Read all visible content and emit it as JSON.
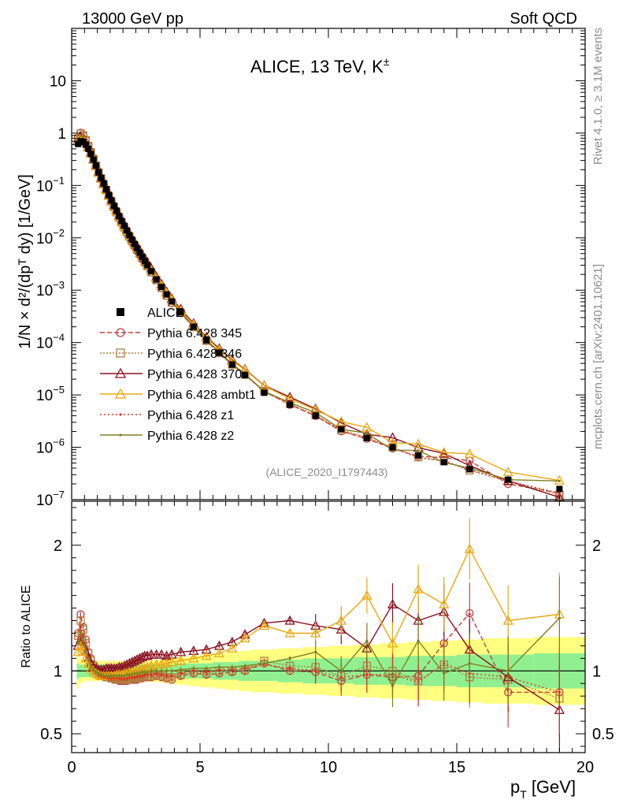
{
  "header": {
    "left": "13000 GeV pp",
    "right": "Soft QCD"
  },
  "side_text": {
    "rivet": "Rivet 4.1.0, ≥ 3.1M events",
    "site": "mcplots.cern.ch [arXiv:2401.10621]"
  },
  "chart_data": {
    "type": "line",
    "title": "ALICE, 13 TeV, K",
    "title_superscript": "±",
    "analysis_label": "(ALICE_2020_I1797443)",
    "xlabel": "p",
    "xlabel_sub": "T",
    "xlabel_unit": "[GeV]",
    "ylabel_main": "1/N × d²/(dpᵀ dy) [1/GeV]",
    "ylabel_ratio": "Ratio to ALICE",
    "xlim": [
      0,
      20
    ],
    "ylim_main": [
      1e-07,
      100
    ],
    "ylim_ratio": [
      0.35,
      2.35
    ],
    "x_ticks": [
      0,
      5,
      10,
      15,
      20
    ],
    "x_tick_labels": [
      "0",
      "5",
      "10",
      "15",
      "20"
    ],
    "y_main_ticks": [
      {
        "m": "10",
        "e": "−7",
        "v": 1e-07
      },
      {
        "m": "10",
        "e": "−6",
        "v": 1e-06
      },
      {
        "m": "10",
        "e": "−5",
        "v": 1e-05
      },
      {
        "m": "10",
        "e": "−4",
        "v": 0.0001
      },
      {
        "m": "10",
        "e": "−3",
        "v": 0.001
      },
      {
        "m": "10",
        "e": "−2",
        "v": 0.01
      },
      {
        "m": "10",
        "e": "−1",
        "v": 0.1
      },
      {
        "m": "1",
        "e": "",
        "v": 1
      },
      {
        "m": "10",
        "e": "",
        "v": 10
      }
    ],
    "y_ratio_ticks": [
      {
        "label": "0.5",
        "v": 0.5
      },
      {
        "label": "1",
        "v": 1
      },
      {
        "label": "2",
        "v": 2
      }
    ],
    "legend": [
      {
        "name": "ALICE",
        "key": "data"
      },
      {
        "name": "Pythia 6.428 345",
        "key": "p345"
      },
      {
        "name": "Pythia 6.428 346",
        "key": "p346"
      },
      {
        "name": "Pythia 6.428 370",
        "key": "p370"
      },
      {
        "name": "Pythia 6.428 ambt1",
        "key": "ambt1"
      },
      {
        "name": "Pythia 6.428 z1",
        "key": "z1"
      },
      {
        "name": "Pythia 6.428 z2",
        "key": "z2"
      }
    ],
    "x": [
      0.25,
      0.35,
      0.45,
      0.55,
      0.65,
      0.75,
      0.85,
      0.95,
      1.05,
      1.15,
      1.25,
      1.35,
      1.45,
      1.55,
      1.65,
      1.75,
      1.85,
      1.95,
      2.05,
      2.15,
      2.25,
      2.35,
      2.45,
      2.55,
      2.65,
      2.75,
      2.85,
      2.95,
      3.1,
      3.3,
      3.5,
      3.7,
      3.9,
      4.25,
      4.75,
      5.25,
      5.75,
      6.25,
      6.75,
      7.5,
      8.5,
      9.5,
      10.5,
      11.5,
      12.5,
      13.5,
      14.5,
      15.5,
      17,
      19
    ],
    "data_values": [
      0.62,
      0.7,
      0.68,
      0.6,
      0.5,
      0.4,
      0.31,
      0.24,
      0.18,
      0.14,
      0.11,
      0.085,
      0.066,
      0.052,
      0.041,
      0.033,
      0.026,
      0.021,
      0.017,
      0.0138,
      0.0112,
      0.0092,
      0.0076,
      0.0063,
      0.0052,
      0.0043,
      0.0036,
      0.003,
      0.0023,
      0.0016,
      0.00115,
      0.00083,
      0.00061,
      0.00038,
      0.0002,
      0.00011,
      6.4e-05,
      3.8e-05,
      2.4e-05,
      1.1e-05,
      6.5e-06,
      4e-06,
      2.2e-06,
      1.5e-06,
      1e-06,
      7e-07,
      5.2e-07,
      3.8e-07,
      2.4e-07,
      1.6e-07
    ],
    "data_display_values": [
      0.62,
      0.7,
      0.68,
      0.6,
      0.5,
      0.4,
      0.31,
      0.24,
      0.18,
      0.14,
      0.11,
      0.085,
      0.066,
      0.052,
      0.041,
      0.033,
      0.026,
      0.021,
      0.017,
      0.0138,
      0.0112,
      0.0092,
      0.0076,
      0.0063,
      0.0052,
      0.0043,
      0.0036,
      0.003,
      0.0023,
      0.0016,
      0.00115,
      0.00083,
      0.00061,
      0.00038,
      0.0002,
      0.00011,
      6.4e-05,
      3.8e-05,
      2.4e-05,
      1.1e-05,
      6.5e-06,
      4e-06,
      2.2e-06,
      1.5e-06,
      1e-06,
      7e-07,
      5.2e-07,
      3.8e-07,
      2.4e-07,
      1.6e-07
    ],
    "band_x_edges": [
      0.2,
      0.3,
      0.4,
      0.5,
      0.6,
      0.7,
      0.8,
      0.9,
      1.0,
      1.1,
      1.2,
      1.3,
      1.4,
      1.5,
      1.6,
      1.7,
      1.8,
      1.9,
      2.0,
      2.1,
      2.2,
      2.3,
      2.4,
      2.5,
      2.6,
      2.7,
      2.8,
      2.9,
      3.0,
      3.2,
      3.4,
      3.6,
      3.8,
      4.0,
      4.5,
      5.0,
      5.5,
      6.0,
      6.5,
      7.0,
      8.0,
      9.0,
      10.0,
      11.0,
      12.0,
      13.0,
      14.0,
      15.0,
      16.0,
      18.0,
      20.0
    ],
    "band_green": [
      0.06,
      0.05,
      0.05,
      0.05,
      0.05,
      0.05,
      0.05,
      0.05,
      0.05,
      0.05,
      0.05,
      0.05,
      0.05,
      0.05,
      0.05,
      0.05,
      0.05,
      0.05,
      0.05,
      0.05,
      0.05,
      0.05,
      0.05,
      0.05,
      0.05,
      0.05,
      0.05,
      0.05,
      0.05,
      0.05,
      0.05,
      0.05,
      0.05,
      0.06,
      0.06,
      0.06,
      0.07,
      0.07,
      0.08,
      0.08,
      0.09,
      0.1,
      0.1,
      0.11,
      0.11,
      0.12,
      0.12,
      0.13,
      0.13,
      0.14
    ],
    "band_yellow": [
      0.14,
      0.1,
      0.09,
      0.08,
      0.08,
      0.08,
      0.08,
      0.08,
      0.08,
      0.08,
      0.08,
      0.08,
      0.08,
      0.08,
      0.08,
      0.08,
      0.08,
      0.08,
      0.08,
      0.08,
      0.08,
      0.08,
      0.08,
      0.08,
      0.08,
      0.08,
      0.08,
      0.08,
      0.09,
      0.09,
      0.09,
      0.1,
      0.1,
      0.11,
      0.12,
      0.13,
      0.14,
      0.15,
      0.16,
      0.17,
      0.18,
      0.19,
      0.2,
      0.21,
      0.22,
      0.23,
      0.24,
      0.25,
      0.26,
      0.27
    ],
    "series": [
      {
        "key": "p345",
        "name": "Pythia 6.428 345",
        "color": "#c04040",
        "dash": "6,3",
        "marker": "circle",
        "ratio": [
          1.3,
          1.45,
          1.35,
          1.25,
          1.15,
          1.1,
          1.05,
          1.0,
          0.98,
          0.97,
          0.96,
          0.95,
          0.95,
          0.94,
          0.93,
          0.93,
          0.92,
          0.92,
          0.92,
          0.92,
          0.93,
          0.93,
          0.93,
          0.93,
          0.94,
          0.94,
          0.95,
          0.95,
          0.95,
          0.96,
          0.95,
          0.94,
          0.93,
          0.96,
          0.98,
          0.97,
          0.98,
          0.99,
          1.0,
          1.06,
          1.0,
          0.99,
          0.92,
          0.97,
          0.95,
          0.96,
          1.22,
          1.46,
          0.83,
          0.83
        ]
      },
      {
        "key": "p346",
        "name": "Pythia 6.428 346",
        "color": "#b08040",
        "dash": "2,2",
        "marker": "square",
        "ratio": [
          1.28,
          1.4,
          1.33,
          1.22,
          1.14,
          1.08,
          1.04,
          1.0,
          0.98,
          0.97,
          0.96,
          0.95,
          0.95,
          0.94,
          0.94,
          0.93,
          0.93,
          0.93,
          0.93,
          0.93,
          0.94,
          0.94,
          0.94,
          0.94,
          0.95,
          0.95,
          0.96,
          0.96,
          0.96,
          0.97,
          0.96,
          0.95,
          0.95,
          0.97,
          0.99,
          0.98,
          1.0,
          1.0,
          1.01,
          1.08,
          1.04,
          1.03,
          0.96,
          1.04,
          1.0,
          0.92,
          1.05,
          0.95,
          0.93,
          0.78
        ]
      },
      {
        "key": "p370",
        "name": "Pythia 6.428 370",
        "color": "#8b1020",
        "dash": "",
        "marker": "triangle",
        "ratio": [
          1.2,
          1.25,
          1.2,
          1.15,
          1.1,
          1.06,
          1.03,
          1.02,
          1.01,
          1.01,
          1.01,
          1.02,
          1.02,
          1.02,
          1.02,
          1.02,
          1.03,
          1.03,
          1.04,
          1.05,
          1.06,
          1.07,
          1.08,
          1.09,
          1.1,
          1.11,
          1.12,
          1.12,
          1.13,
          1.13,
          1.13,
          1.12,
          1.13,
          1.15,
          1.16,
          1.17,
          1.2,
          1.23,
          1.29,
          1.38,
          1.4,
          1.36,
          1.33,
          1.18,
          1.53,
          1.4,
          1.47,
          1.17,
          0.95,
          0.69
        ]
      },
      {
        "key": "ambt1",
        "name": "Pythia 6.428 ambt1",
        "color": "#e8a810",
        "dash": "",
        "marker": "triangle",
        "ratio": [
          1.15,
          1.2,
          1.15,
          1.1,
          1.06,
          1.02,
          1.0,
          0.98,
          0.97,
          0.96,
          0.96,
          0.96,
          0.96,
          0.96,
          0.96,
          0.97,
          0.97,
          0.97,
          0.98,
          0.98,
          0.99,
          0.99,
          1.0,
          1.0,
          1.01,
          1.02,
          1.02,
          1.03,
          1.04,
          1.05,
          1.05,
          1.06,
          1.07,
          1.08,
          1.1,
          1.12,
          1.14,
          1.18,
          1.26,
          1.36,
          1.3,
          1.3,
          1.4,
          1.6,
          1.22,
          1.65,
          1.53,
          1.97,
          1.4,
          1.45
        ]
      },
      {
        "key": "z1",
        "name": "Pythia 6.428 z1",
        "color": "#e03020",
        "dash": "2,3",
        "marker": "dot",
        "ratio": [
          1.25,
          1.35,
          1.28,
          1.18,
          1.1,
          1.05,
          1.01,
          0.99,
          0.97,
          0.96,
          0.95,
          0.95,
          0.94,
          0.94,
          0.94,
          0.94,
          0.94,
          0.94,
          0.94,
          0.94,
          0.95,
          0.95,
          0.95,
          0.96,
          0.96,
          0.96,
          0.97,
          0.97,
          0.97,
          0.98,
          0.97,
          0.96,
          0.96,
          0.98,
          1.0,
          0.99,
          1.01,
          1.01,
          1.02,
          1.05,
          1.02,
          1.0,
          0.95,
          0.97,
          0.97,
          0.91,
          1.06,
          0.98,
          0.95,
          0.83
        ]
      },
      {
        "key": "z2",
        "name": "Pythia 6.428 z2",
        "color": "#808020",
        "dash": "",
        "marker": "dot",
        "ratio": [
          1.22,
          1.3,
          1.24,
          1.16,
          1.09,
          1.04,
          1.01,
          0.99,
          0.98,
          0.97,
          0.96,
          0.96,
          0.96,
          0.96,
          0.96,
          0.96,
          0.96,
          0.96,
          0.96,
          0.97,
          0.97,
          0.97,
          0.98,
          0.98,
          0.98,
          0.99,
          0.99,
          0.99,
          1.0,
          1.0,
          1.0,
          1.0,
          1.0,
          1.01,
          1.02,
          1.02,
          1.03,
          1.03,
          1.04,
          1.06,
          1.1,
          1.15,
          1.0,
          1.24,
          0.88,
          1.24,
          0.98,
          1.06,
          1.0,
          1.42
        ]
      }
    ]
  }
}
